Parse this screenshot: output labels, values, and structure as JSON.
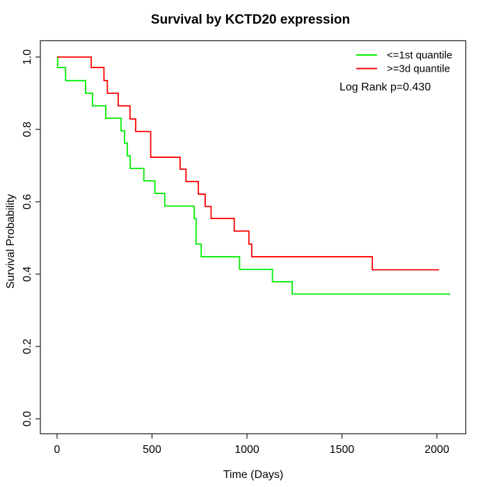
{
  "title": "Survival by KCTD20 expression",
  "legend": {
    "entries": [
      {
        "label": "<=1st quantile",
        "color": "#00ee00"
      },
      {
        "label": ">=3d quantile",
        "color": "#ff0000"
      }
    ],
    "note": "Log Rank p=0.430"
  },
  "chart_data": {
    "type": "line",
    "subtype": "kaplan-meier-step",
    "title": "Survival by KCTD20 expression",
    "xlabel": "Time (Days)",
    "ylabel": "Survival Probability",
    "xlim": [
      0,
      2100
    ],
    "ylim": [
      0.0,
      1.0
    ],
    "xticks": [
      0,
      500,
      1000,
      1500,
      2000
    ],
    "yticks": [
      0.0,
      0.2,
      0.4,
      0.6,
      0.8,
      1.0
    ],
    "grid": false,
    "legend_position": "top-right",
    "annotation": "Log Rank p=0.430",
    "series": [
      {
        "name": "<=1st quantile",
        "color": "#00ee00",
        "end_time": 2070,
        "points": [
          [
            0,
            1.0
          ],
          [
            3,
            0.971
          ],
          [
            45,
            0.935
          ],
          [
            150,
            0.9
          ],
          [
            187,
            0.865
          ],
          [
            256,
            0.831
          ],
          [
            337,
            0.796
          ],
          [
            355,
            0.762
          ],
          [
            370,
            0.727
          ],
          [
            385,
            0.692
          ],
          [
            457,
            0.658
          ],
          [
            515,
            0.623
          ],
          [
            567,
            0.588
          ],
          [
            722,
            0.554
          ],
          [
            732,
            0.483
          ],
          [
            759,
            0.448
          ],
          [
            961,
            0.413
          ],
          [
            1134,
            0.379
          ],
          [
            1238,
            0.345
          ]
        ]
      },
      {
        "name": ">=3d quantile",
        "color": "#ff0000",
        "end_time": 2011,
        "points": [
          [
            0,
            1.0
          ],
          [
            180,
            0.971
          ],
          [
            247,
            0.935
          ],
          [
            265,
            0.9
          ],
          [
            322,
            0.865
          ],
          [
            384,
            0.829
          ],
          [
            414,
            0.794
          ],
          [
            493,
            0.723
          ],
          [
            648,
            0.69
          ],
          [
            679,
            0.656
          ],
          [
            744,
            0.621
          ],
          [
            780,
            0.587
          ],
          [
            811,
            0.554
          ],
          [
            933,
            0.519
          ],
          [
            1010,
            0.483
          ],
          [
            1025,
            0.448
          ],
          [
            1660,
            0.412
          ]
        ]
      }
    ]
  }
}
